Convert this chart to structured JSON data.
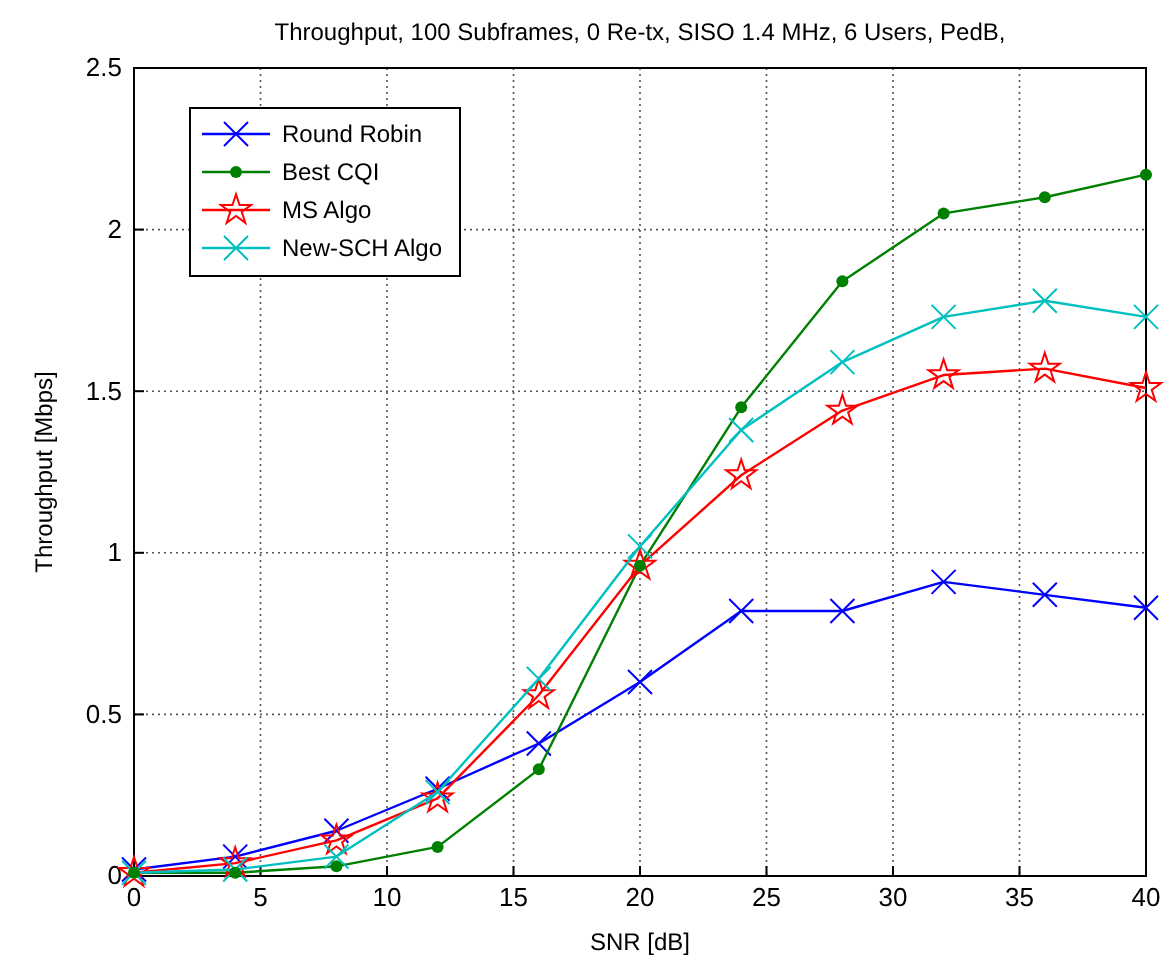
{
  "chart_data": {
    "type": "line",
    "title": "Throughput, 100 Subframes, 0 Re-tx, SISO  1.4 MHz, 6 Users, PedB,",
    "xlabel": "SNR [dB]",
    "ylabel": "Throughput [Mbps]",
    "x": [
      0,
      4,
      8,
      12,
      16,
      20,
      24,
      28,
      32,
      36,
      40
    ],
    "series": [
      {
        "name": "Round Robin",
        "color": "#0000ff",
        "marker": "cross",
        "values": [
          0.02,
          0.06,
          0.14,
          0.27,
          0.41,
          0.6,
          0.82,
          0.82,
          0.91,
          0.87,
          0.83
        ]
      },
      {
        "name": "Best CQI",
        "color": "#008000",
        "marker": "circle",
        "values": [
          0.01,
          0.01,
          0.03,
          0.09,
          0.33,
          0.96,
          1.45,
          1.84,
          2.05,
          2.1,
          2.17
        ]
      },
      {
        "name": "MS Algo",
        "color": "#ff0000",
        "marker": "star",
        "values": [
          0.01,
          0.04,
          0.11,
          0.24,
          0.56,
          0.96,
          1.24,
          1.44,
          1.55,
          1.57,
          1.51
        ]
      },
      {
        "name": "New-SCH Algo",
        "color": "#00bfbf",
        "marker": "cross",
        "values": [
          0.01,
          0.02,
          0.06,
          0.26,
          0.61,
          1.02,
          1.38,
          1.59,
          1.73,
          1.78,
          1.73
        ]
      }
    ],
    "xlim": [
      0,
      40
    ],
    "xticks": [
      0,
      5,
      10,
      15,
      20,
      25,
      30,
      35,
      40
    ],
    "ylim": [
      0,
      2.5
    ],
    "yticks": [
      0,
      0.5,
      1,
      1.5,
      2,
      2.5
    ],
    "grid": true,
    "legend": "top left",
    "line_style": "solid"
  }
}
